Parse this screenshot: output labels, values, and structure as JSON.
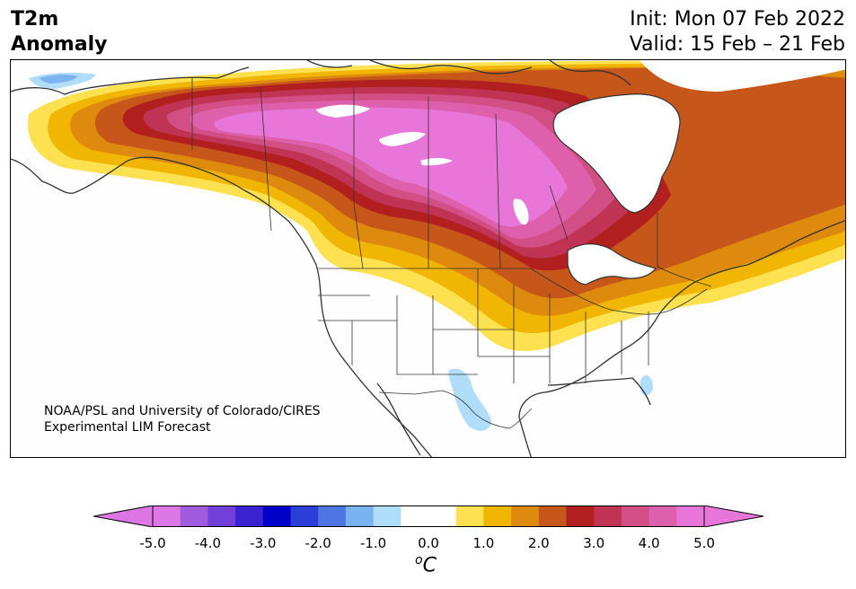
{
  "title": {
    "line1": "T2m",
    "line2": "Anomaly"
  },
  "meta": {
    "init": "Init: Mon 07 Feb 2022",
    "valid": "Valid: 15 Feb – 21 Feb"
  },
  "credit": {
    "line1": "NOAA/PSL and University of Colorado/CIRES",
    "line2": "Experimental LIM Forecast"
  },
  "colorbar": {
    "ticks": [
      "-5.0",
      "-4.0",
      "-3.0",
      "-2.0",
      "-1.0",
      "0.0",
      "1.0",
      "2.0",
      "3.0",
      "4.0",
      "5.0"
    ],
    "units_base": "C",
    "units_sup": "o",
    "range": [
      -5.0,
      5.0
    ],
    "step": 0.5,
    "colors": [
      "#dd77e6",
      "#a15be0",
      "#7040d9",
      "#3a22d0",
      "#0000c9",
      "#2b3ed8",
      "#4f75e2",
      "#7bb2f0",
      "#b0ddf9",
      "#ffffff",
      "#ffffff",
      "#fde150",
      "#f1b603",
      "#de8a0e",
      "#c6561a",
      "#b1201f",
      "#c13355",
      "#d14f84",
      "#de60ad",
      "#e776d8"
    ],
    "below_color": "#dd77e6",
    "above_color": "#e776d8"
  },
  "map": {
    "region": "North America",
    "variable": "2-m temperature anomaly",
    "anomaly_colors": {
      "plus5": "#e776d8",
      "plus4_5": "#de60ad",
      "plus4": "#d14f84",
      "plus3_5": "#c13355",
      "plus3": "#b1201f",
      "plus2_5": "#c6561a",
      "plus2": "#de8a0e",
      "plus1_5": "#f1b603",
      "plus1": "#fde150",
      "neutral": "#fefefe",
      "minus1": "#b0ddf9",
      "minus1_5": "#7bb2f0",
      "minus2": "#4f75e2"
    }
  }
}
